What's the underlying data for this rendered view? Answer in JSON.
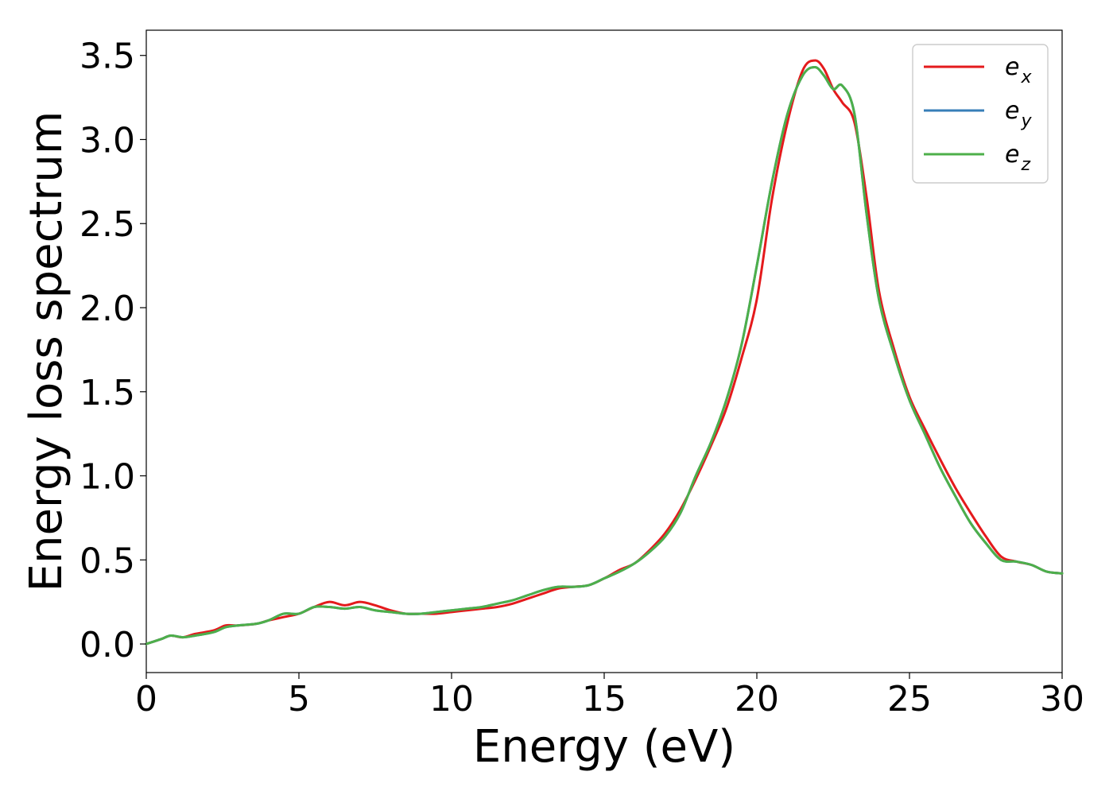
{
  "chart_data": {
    "type": "line",
    "title": "",
    "xlabel": "Energy (eV)",
    "ylabel": "Energy loss spectrum",
    "xlim": [
      0,
      30
    ],
    "ylim": [
      -0.17,
      3.65
    ],
    "xticks": [
      0,
      5,
      10,
      15,
      20,
      25,
      30
    ],
    "xtick_labels": [
      "0",
      "5",
      "10",
      "15",
      "20",
      "25",
      "30"
    ],
    "yticks": [
      0.0,
      0.5,
      1.0,
      1.5,
      2.0,
      2.5,
      3.0,
      3.5
    ],
    "ytick_labels": [
      "0.0",
      "0.5",
      "1.0",
      "1.5",
      "2.0",
      "2.5",
      "3.0",
      "3.5"
    ],
    "grid": false,
    "legend_position": "top-right",
    "series": [
      {
        "name": "e_x",
        "legend_base": "e",
        "legend_sub": "x",
        "color": "#e41a1c",
        "x": [
          0,
          0.5,
          0.8,
          1.2,
          1.6,
          2.2,
          2.6,
          3.0,
          3.6,
          4.0,
          4.5,
          5.0,
          5.5,
          6.0,
          6.5,
          7.0,
          7.5,
          8.0,
          8.5,
          9.0,
          9.5,
          10.0,
          10.5,
          11.0,
          11.5,
          12.0,
          12.5,
          13.0,
          13.5,
          14.0,
          14.5,
          15.0,
          15.5,
          16.0,
          16.5,
          17.0,
          17.5,
          18.0,
          18.5,
          19.0,
          19.5,
          20.0,
          20.5,
          21.0,
          21.5,
          21.9,
          22.2,
          22.5,
          22.8,
          23.2,
          23.6,
          24.0,
          24.5,
          25.0,
          25.5,
          26.0,
          26.5,
          27.0,
          27.5,
          28.0,
          28.5,
          29.0,
          29.5,
          30.0
        ],
        "y": [
          0.0,
          0.03,
          0.05,
          0.04,
          0.06,
          0.08,
          0.11,
          0.11,
          0.12,
          0.14,
          0.16,
          0.18,
          0.22,
          0.25,
          0.23,
          0.25,
          0.23,
          0.2,
          0.18,
          0.18,
          0.18,
          0.19,
          0.2,
          0.21,
          0.22,
          0.24,
          0.27,
          0.3,
          0.33,
          0.34,
          0.35,
          0.39,
          0.44,
          0.48,
          0.56,
          0.66,
          0.8,
          0.98,
          1.18,
          1.4,
          1.7,
          2.05,
          2.65,
          3.1,
          3.41,
          3.47,
          3.42,
          3.3,
          3.22,
          3.1,
          2.65,
          2.1,
          1.75,
          1.47,
          1.28,
          1.1,
          0.93,
          0.78,
          0.64,
          0.52,
          0.49,
          0.47,
          0.43,
          0.42
        ]
      },
      {
        "name": "e_y",
        "legend_base": "e",
        "legend_sub": "y",
        "color": "#377eb8",
        "x": [
          0,
          0.5,
          0.8,
          1.2,
          1.6,
          2.2,
          2.6,
          3.0,
          3.6,
          4.0,
          4.5,
          5.0,
          5.5,
          6.0,
          6.5,
          7.0,
          7.5,
          8.0,
          8.5,
          9.0,
          9.5,
          10.0,
          10.5,
          11.0,
          11.5,
          12.0,
          12.5,
          13.0,
          13.5,
          14.0,
          14.5,
          15.0,
          15.5,
          16.0,
          16.5,
          17.0,
          17.5,
          18.0,
          18.5,
          19.0,
          19.5,
          20.0,
          20.5,
          21.0,
          21.5,
          21.9,
          22.2,
          22.5,
          22.8,
          23.2,
          23.6,
          24.0,
          24.5,
          25.0,
          25.5,
          26.0,
          26.5,
          27.0,
          27.5,
          28.0,
          28.5,
          29.0,
          29.5,
          30.0
        ],
        "y": [
          0.0,
          0.03,
          0.05,
          0.04,
          0.05,
          0.07,
          0.1,
          0.11,
          0.12,
          0.14,
          0.18,
          0.18,
          0.22,
          0.22,
          0.21,
          0.22,
          0.2,
          0.19,
          0.18,
          0.18,
          0.19,
          0.2,
          0.21,
          0.22,
          0.24,
          0.26,
          0.29,
          0.32,
          0.34,
          0.34,
          0.35,
          0.39,
          0.43,
          0.48,
          0.55,
          0.64,
          0.78,
          1.0,
          1.2,
          1.45,
          1.78,
          2.25,
          2.75,
          3.15,
          3.38,
          3.43,
          3.38,
          3.3,
          3.32,
          3.15,
          2.55,
          2.05,
          1.72,
          1.45,
          1.25,
          1.05,
          0.88,
          0.72,
          0.6,
          0.5,
          0.49,
          0.47,
          0.43,
          0.42
        ]
      },
      {
        "name": "e_z",
        "legend_base": "e",
        "legend_sub": "z",
        "color": "#4daf4a",
        "x": [
          0,
          0.5,
          0.8,
          1.2,
          1.6,
          2.2,
          2.6,
          3.0,
          3.6,
          4.0,
          4.5,
          5.0,
          5.5,
          6.0,
          6.5,
          7.0,
          7.5,
          8.0,
          8.5,
          9.0,
          9.5,
          10.0,
          10.5,
          11.0,
          11.5,
          12.0,
          12.5,
          13.0,
          13.5,
          14.0,
          14.5,
          15.0,
          15.5,
          16.0,
          16.5,
          17.0,
          17.5,
          18.0,
          18.5,
          19.0,
          19.5,
          20.0,
          20.5,
          21.0,
          21.5,
          21.9,
          22.2,
          22.5,
          22.8,
          23.2,
          23.6,
          24.0,
          24.5,
          25.0,
          25.5,
          26.0,
          26.5,
          27.0,
          27.5,
          28.0,
          28.5,
          29.0,
          29.5,
          30.0
        ],
        "y": [
          0.0,
          0.03,
          0.05,
          0.04,
          0.05,
          0.07,
          0.1,
          0.11,
          0.12,
          0.14,
          0.18,
          0.18,
          0.22,
          0.22,
          0.21,
          0.22,
          0.2,
          0.19,
          0.18,
          0.18,
          0.19,
          0.2,
          0.21,
          0.22,
          0.24,
          0.26,
          0.29,
          0.32,
          0.34,
          0.34,
          0.35,
          0.39,
          0.43,
          0.48,
          0.55,
          0.64,
          0.78,
          1.0,
          1.2,
          1.45,
          1.78,
          2.25,
          2.75,
          3.15,
          3.38,
          3.43,
          3.38,
          3.3,
          3.32,
          3.15,
          2.55,
          2.05,
          1.72,
          1.45,
          1.25,
          1.05,
          0.88,
          0.72,
          0.6,
          0.5,
          0.49,
          0.47,
          0.43,
          0.42
        ]
      }
    ]
  }
}
